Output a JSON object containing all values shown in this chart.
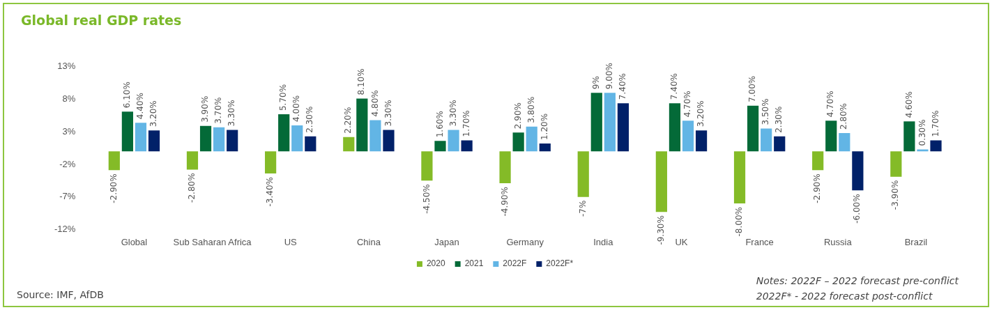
{
  "chart_data": {
    "type": "bar",
    "title": "Global real GDP rates",
    "categories": [
      "Global",
      "Sub Saharan Africa",
      "US",
      "China",
      "Japan",
      "Germany",
      "India",
      "UK",
      "France",
      "Russia",
      "Brazil"
    ],
    "series": [
      {
        "name": "2020",
        "color": "#84bb27",
        "values": [
          -2.9,
          -2.8,
          -3.4,
          2.2,
          -4.5,
          -4.9,
          -7,
          -9.3,
          -8.0,
          -2.9,
          -3.9
        ],
        "value_labels": [
          "-2.90%",
          "-2.80%",
          "-3.40%",
          "2.20%",
          "-4.50%",
          "-4.90%",
          "-7%",
          "-9.30%",
          "-8.00%",
          "-2.90%",
          "-3.90%"
        ]
      },
      {
        "name": "2021",
        "color": "#046a38",
        "values": [
          6.1,
          3.9,
          5.7,
          8.1,
          1.6,
          2.9,
          9,
          7.4,
          7.0,
          4.7,
          4.6
        ],
        "value_labels": [
          "6.10%",
          "3.90%",
          "5.70%",
          "8.10%",
          "1.60%",
          "2.90%",
          "9%",
          "7.40%",
          "7.00%",
          "4.70%",
          "4.60%"
        ]
      },
      {
        "name": "2022F",
        "color": "#62b5e5",
        "values": [
          4.4,
          3.7,
          4.0,
          4.8,
          3.3,
          3.8,
          9.0,
          4.7,
          3.5,
          2.8,
          0.3
        ],
        "value_labels": [
          "4.40%",
          "3.70%",
          "4.00%",
          "4.80%",
          "3.30%",
          "3.80%",
          "9.00%",
          "4.70%",
          "3.50%",
          "2.80%",
          "0.30%"
        ]
      },
      {
        "name": "2022F*",
        "color": "#012169",
        "values": [
          3.2,
          3.3,
          2.3,
          3.3,
          1.7,
          1.2,
          7.4,
          3.2,
          2.3,
          -6.0,
          1.7
        ],
        "value_labels": [
          "3.20%",
          "3.30%",
          "2.30%",
          "3.30%",
          "1.70%",
          "1.20%",
          "7.40%",
          "3.20%",
          "2.30%",
          "-6.00%",
          "1.70%"
        ]
      }
    ],
    "ylim": [
      -12,
      13
    ],
    "yticks": [
      {
        "value": -12,
        "label": "-12%"
      },
      {
        "value": -7,
        "label": "-7%"
      },
      {
        "value": -2,
        "label": "-2%"
      },
      {
        "value": 3,
        "label": "3%"
      },
      {
        "value": 8,
        "label": "8%"
      },
      {
        "value": 13,
        "label": "13%"
      }
    ],
    "grid": false,
    "legend": "bottom",
    "annotations": [
      "Source: IMF, AfDB",
      "Notes: 2022F – 2022 forecast pre-conflict",
      "2022F* - 2022 forecast post-conflict"
    ]
  }
}
